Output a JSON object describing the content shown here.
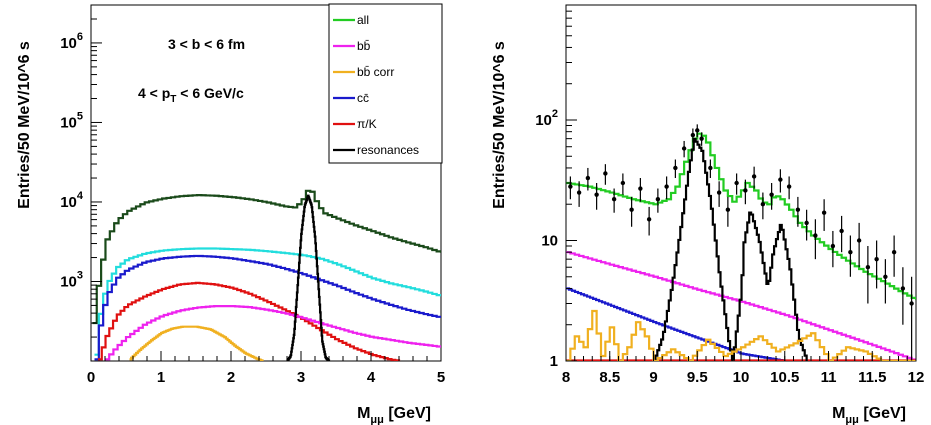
{
  "chart_data": [
    {
      "type": "line",
      "xlabel": "M",
      "xlabel_sub": "μμ",
      "xlabel_unit": "[GeV]",
      "ylabel": "Entries/50 MeV/10^6 s",
      "yscale": "log",
      "xlim": [
        0,
        5
      ],
      "ylim": [
        100,
        3000000
      ],
      "x_ticks": [
        "0",
        "1",
        "2",
        "3",
        "4",
        "5"
      ],
      "y_ticks": [
        {
          "base": "10",
          "exp": "3"
        },
        {
          "base": "10",
          "exp": "4"
        },
        {
          "base": "10",
          "exp": "5"
        },
        {
          "base": "10",
          "exp": "6"
        }
      ],
      "annotations": {
        "line1": "3 < b <  6 fm",
        "line2_pre": "4 < p",
        "line2_sub": "T",
        "line2_post": " <  6 GeV/c"
      },
      "legend": [
        {
          "label": "all",
          "color": "#22cc22"
        },
        {
          "label": "bb̄",
          "color": "#ee22ee"
        },
        {
          "label": "bb̄ corr",
          "color": "#f0b020"
        },
        {
          "label": "cc̄",
          "color": "#1a1acc"
        },
        {
          "label": "π/K",
          "color": "#e01010"
        },
        {
          "label": "resonances",
          "color": "#000000"
        }
      ],
      "series": [
        {
          "name": "all",
          "color": "#1a4a1a",
          "x": [
            0.02,
            0.1,
            0.2,
            0.35,
            0.5,
            0.75,
            1.0,
            1.25,
            1.5,
            1.75,
            2.0,
            2.25,
            2.5,
            2.75,
            2.9,
            3.0,
            3.1,
            3.2,
            3.3,
            3.5,
            3.75,
            4.0,
            4.25,
            4.5,
            4.75,
            5.0
          ],
          "y": [
            300,
            1200,
            3300,
            5800,
            7600,
            9800,
            11000,
            11800,
            12200,
            12000,
            11500,
            10800,
            9900,
            8800,
            8500,
            10500,
            15500,
            10000,
            7300,
            6200,
            5100,
            4300,
            3600,
            3100,
            2700,
            2300
          ]
        },
        {
          "name": "",
          "color": "#22dddd",
          "x": [
            0.05,
            0.1,
            0.2,
            0.35,
            0.5,
            0.75,
            1.0,
            1.25,
            1.5,
            1.75,
            2.0,
            2.25,
            2.5,
            2.75,
            3.0,
            3.25,
            3.5,
            3.75,
            4.0,
            4.25,
            4.5,
            4.75,
            5.0
          ],
          "y": [
            120,
            350,
            900,
            1500,
            1900,
            2250,
            2450,
            2550,
            2600,
            2600,
            2550,
            2500,
            2400,
            2280,
            2150,
            1950,
            1650,
            1350,
            1100,
            950,
            850,
            750,
            650
          ]
        },
        {
          "name": "cc̄",
          "color": "#1a1acc",
          "x": [
            0.05,
            0.1,
            0.2,
            0.35,
            0.5,
            0.75,
            1.0,
            1.25,
            1.5,
            1.75,
            2.0,
            2.25,
            2.5,
            2.75,
            3.0,
            3.25,
            3.5,
            3.75,
            4.0,
            4.25,
            4.5,
            4.75,
            5.0
          ],
          "y": [
            105,
            250,
            650,
            1100,
            1400,
            1750,
            1950,
            2050,
            2100,
            2050,
            1950,
            1800,
            1650,
            1450,
            1250,
            1050,
            880,
            720,
            600,
            510,
            440,
            390,
            350
          ]
        },
        {
          "name": "π/K",
          "color": "#e01010",
          "x": [
            0.1,
            0.2,
            0.35,
            0.5,
            0.75,
            1.0,
            1.25,
            1.5,
            1.75,
            2.0,
            2.25,
            2.5,
            2.75,
            3.0,
            3.25,
            3.5,
            3.75,
            4.0,
            4.25,
            4.4
          ],
          "y": [
            105,
            200,
            370,
            500,
            650,
            800,
            920,
            960,
            920,
            830,
            700,
            560,
            440,
            340,
            250,
            185,
            145,
            120,
            105,
            100
          ]
        },
        {
          "name": "bb̄",
          "color": "#ee22ee",
          "x": [
            0.2,
            0.35,
            0.5,
            0.75,
            1.0,
            1.25,
            1.5,
            1.75,
            2.0,
            2.25,
            2.5,
            2.75,
            3.0,
            3.25,
            3.5,
            3.75,
            4.0,
            4.25,
            4.5,
            4.75,
            5.0
          ],
          "y": [
            105,
            150,
            200,
            290,
            370,
            430,
            470,
            490,
            490,
            475,
            440,
            400,
            350,
            300,
            260,
            225,
            200,
            185,
            170,
            160,
            150
          ]
        },
        {
          "name": "bb̄ corr",
          "color": "#f0b020",
          "x": [
            0.55,
            0.7,
            0.85,
            1.0,
            1.15,
            1.3,
            1.5,
            1.7,
            1.9,
            2.05,
            2.2,
            2.35,
            2.45
          ],
          "y": [
            105,
            140,
            180,
            225,
            255,
            270,
            270,
            250,
            200,
            155,
            125,
            108,
            100
          ]
        },
        {
          "name": "resonances",
          "color": "#000000",
          "x": [
            2.8,
            2.85,
            2.9,
            2.95,
            3.0,
            3.05,
            3.1,
            3.15,
            3.2,
            3.25,
            3.3,
            3.35,
            3.4
          ],
          "y": [
            100,
            115,
            220,
            900,
            3800,
            9000,
            12000,
            9000,
            3500,
            800,
            180,
            110,
            100
          ]
        }
      ]
    },
    {
      "type": "line",
      "xlabel": "M",
      "xlabel_sub": "μμ",
      "xlabel_unit": "[GeV]",
      "ylabel": "Entries/50 MeV/10^6 s",
      "yscale": "log",
      "xlim": [
        8,
        12
      ],
      "ylim": [
        1,
        900
      ],
      "x_ticks": [
        "8",
        "8.5",
        "9",
        "9.5",
        "10",
        "10.5",
        "11",
        "11.5",
        "12"
      ],
      "y_ticks": [
        {
          "base": "1",
          "exp": ""
        },
        {
          "base": "10",
          "exp": ""
        },
        {
          "base": "10",
          "exp": "2"
        }
      ],
      "points": {
        "x": [
          8.05,
          8.15,
          8.25,
          8.35,
          8.45,
          8.55,
          8.65,
          8.75,
          8.85,
          8.95,
          9.05,
          9.15,
          9.25,
          9.35,
          9.45,
          9.5,
          9.55,
          9.65,
          9.75,
          9.85,
          9.95,
          10.05,
          10.15,
          10.25,
          10.35,
          10.45,
          10.55,
          10.65,
          10.75,
          10.85,
          10.95,
          11.05,
          11.15,
          11.25,
          11.35,
          11.45,
          11.55,
          11.65,
          11.75,
          11.85,
          11.95
        ],
        "y": [
          28,
          25,
          33,
          24,
          36,
          22,
          30,
          18,
          27,
          15,
          22,
          28,
          40,
          58,
          75,
          82,
          70,
          40,
          25,
          18,
          30,
          26,
          34,
          20,
          24,
          32,
          28,
          18,
          14,
          11,
          17,
          9,
          12,
          8,
          10,
          6,
          7,
          5,
          8,
          4,
          3
        ],
        "err": [
          6,
          6,
          7,
          6,
          7,
          5,
          6,
          5,
          6,
          4,
          5,
          6,
          7,
          9,
          10,
          10,
          9,
          7,
          6,
          5,
          6,
          6,
          7,
          5,
          6,
          7,
          6,
          5,
          4,
          4,
          5,
          3,
          4,
          3,
          4,
          3,
          3,
          2,
          3,
          2,
          2
        ]
      },
      "series": [
        {
          "name": "all",
          "color": "#22cc22",
          "x": [
            8.0,
            8.25,
            8.5,
            8.75,
            9.0,
            9.15,
            9.25,
            9.35,
            9.45,
            9.52,
            9.6,
            9.7,
            9.8,
            9.9,
            9.97,
            10.05,
            10.15,
            10.22,
            10.3,
            10.37,
            10.45,
            10.55,
            10.65,
            10.8,
            11.0,
            11.2,
            11.4,
            11.6,
            11.8,
            12.0
          ],
          "y": [
            30,
            28,
            25,
            22,
            20,
            22,
            28,
            45,
            70,
            80,
            65,
            40,
            26,
            21,
            24,
            30,
            26,
            21,
            20,
            24,
            22,
            18,
            14,
            11,
            8.5,
            6.8,
            5.5,
            4.6,
            3.8,
            3.2
          ]
        },
        {
          "name": "bb̄",
          "color": "#ee22ee",
          "x": [
            8.0,
            8.5,
            9.0,
            9.5,
            10.0,
            10.5,
            11.0,
            11.5,
            12.0
          ],
          "y": [
            8,
            6.3,
            5,
            3.9,
            3.1,
            2.4,
            1.8,
            1.35,
            1.0
          ]
        },
        {
          "name": "cc̄",
          "color": "#1a1acc",
          "x": [
            8.0,
            8.5,
            9.0,
            9.5,
            10.0,
            10.5,
            10.75
          ],
          "y": [
            4,
            2.9,
            2.1,
            1.55,
            1.15,
            1.0,
            1.0
          ]
        },
        {
          "name": "π/K",
          "color": "#e01010",
          "x": [
            8.0,
            12.0
          ],
          "y": [
            1.01,
            1.01
          ]
        },
        {
          "name": "resonances",
          "color": "#000000",
          "x": [
            9.0,
            9.1,
            9.2,
            9.3,
            9.4,
            9.46,
            9.55,
            9.65,
            9.75,
            9.85,
            9.9,
            10.0,
            10.02,
            10.1,
            10.2,
            10.3,
            10.36,
            10.45,
            10.55,
            10.65,
            10.75
          ],
          "y": [
            1.0,
            1.6,
            4,
            12,
            40,
            70,
            55,
            20,
            5,
            1.5,
            1.0,
            4,
            9,
            18,
            10,
            4,
            8,
            14,
            6,
            1.6,
            1.0
          ]
        },
        {
          "name": "bb̄ corr",
          "color": "#f0b020",
          "x": [
            8.0,
            8.1,
            8.2,
            8.3,
            8.4,
            8.5,
            8.6,
            8.7,
            8.8,
            8.9,
            9.0,
            9.2,
            9.4,
            9.6,
            9.8,
            10.0,
            10.2,
            10.4,
            10.6,
            10.8,
            11.0,
            11.2,
            11.4,
            11.6,
            11.8,
            12.0
          ],
          "y": [
            1.0,
            1.6,
            1.3,
            2.6,
            1.1,
            1.9,
            1.0,
            1.3,
            2.1,
            1.6,
            1.0,
            1.25,
            1.0,
            1.5,
            1.1,
            1.3,
            1.6,
            1.2,
            1.4,
            1.7,
            1.0,
            1.3,
            1.2,
            1.0,
            1.0,
            1.0
          ]
        }
      ]
    }
  ]
}
